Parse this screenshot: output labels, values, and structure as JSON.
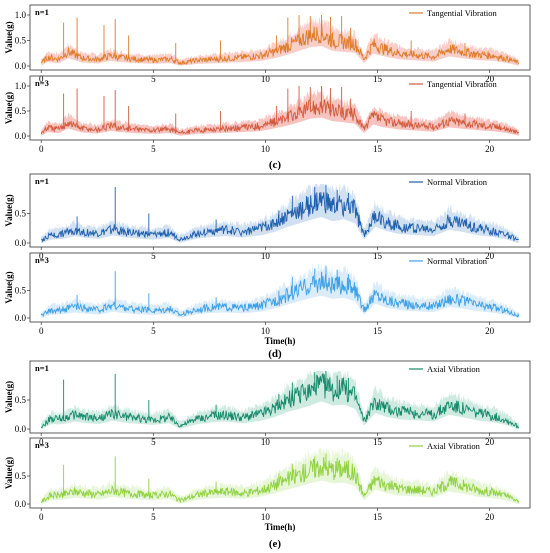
{
  "chart_data": [
    {
      "type": "line",
      "group": "c",
      "panel_label": "n=1",
      "legend": "Tangential Vibration",
      "color": "#e07b28",
      "band_color": "#f7c6c0",
      "ylabel": "Value(g)",
      "xlabel": "",
      "xlim": [
        -0.5,
        21.8
      ],
      "ylim": [
        0,
        1.0
      ],
      "xticks": [
        "0",
        "5",
        "10",
        "15",
        "20"
      ],
      "yticks": [
        "0.0",
        "0.5",
        "1.0"
      ],
      "x": [
        0,
        0.3,
        0.8,
        1.2,
        1.8,
        2.5,
        3.1,
        3.5,
        4.2,
        5.0,
        5.8,
        6.2,
        7.0,
        7.5,
        8.2,
        9.0,
        9.8,
        10.4,
        11.0,
        11.5,
        12.0,
        12.5,
        13.0,
        13.5,
        14.0,
        14.4,
        14.8,
        15.3,
        16.0,
        17.0,
        17.5,
        18.2,
        18.8,
        19.5,
        20.2,
        20.8,
        21.3
      ],
      "values": [
        0.05,
        0.15,
        0.12,
        0.25,
        0.14,
        0.11,
        0.18,
        0.15,
        0.12,
        0.1,
        0.12,
        0.05,
        0.1,
        0.11,
        0.13,
        0.15,
        0.18,
        0.25,
        0.35,
        0.45,
        0.55,
        0.58,
        0.45,
        0.42,
        0.4,
        0.12,
        0.38,
        0.3,
        0.22,
        0.18,
        0.16,
        0.3,
        0.25,
        0.2,
        0.18,
        0.12,
        0.05
      ],
      "spikes_x": [
        1.0,
        1.6,
        2.8,
        3.3,
        3.9,
        6.0,
        8.0,
        10.5,
        11.0,
        11.5,
        12.0,
        12.5,
        12.9,
        13.4,
        13.8,
        16.5,
        18.9
      ],
      "spikes_y": [
        0.85,
        0.95,
        0.8,
        0.92,
        0.6,
        0.45,
        0.5,
        0.6,
        0.95,
        1.0,
        0.98,
        1.0,
        0.96,
        0.98,
        0.75,
        0.5,
        0.45
      ]
    },
    {
      "type": "line",
      "group": "c",
      "panel_label": "n=3",
      "legend": "Tangential Vibration",
      "color": "#d45a3c",
      "band_color": "#f5b9b4",
      "ylabel": "Value(g)",
      "xlabel": "",
      "xlim": [
        -0.5,
        21.8
      ],
      "ylim": [
        0,
        1.0
      ],
      "xticks": [
        "0",
        "5",
        "10",
        "15",
        "20"
      ],
      "yticks": [
        "0.0",
        "0.5",
        "1.0"
      ],
      "x": [
        0,
        0.3,
        0.8,
        1.2,
        1.8,
        2.5,
        3.1,
        3.5,
        4.2,
        5.0,
        5.8,
        6.2,
        7.0,
        7.5,
        8.2,
        9.0,
        9.8,
        10.4,
        11.0,
        11.5,
        12.0,
        12.5,
        13.0,
        13.5,
        14.0,
        14.4,
        14.8,
        15.3,
        16.0,
        17.0,
        17.5,
        18.2,
        18.8,
        19.5,
        20.2,
        20.8,
        21.3
      ],
      "values": [
        0.05,
        0.15,
        0.12,
        0.25,
        0.14,
        0.11,
        0.18,
        0.15,
        0.12,
        0.1,
        0.12,
        0.05,
        0.1,
        0.11,
        0.13,
        0.15,
        0.18,
        0.25,
        0.33,
        0.42,
        0.52,
        0.55,
        0.45,
        0.42,
        0.38,
        0.12,
        0.36,
        0.28,
        0.22,
        0.18,
        0.16,
        0.28,
        0.24,
        0.2,
        0.17,
        0.12,
        0.05
      ],
      "spikes_x": [
        1.0,
        1.6,
        2.8,
        3.3,
        3.9,
        6.0,
        8.0,
        10.5,
        11.0,
        11.5,
        12.0,
        12.5,
        12.9,
        13.4,
        13.8,
        16.5,
        18.9
      ],
      "spikes_y": [
        0.85,
        0.95,
        0.8,
        0.92,
        0.6,
        0.45,
        0.5,
        0.6,
        0.95,
        1.0,
        0.98,
        1.0,
        0.96,
        0.98,
        0.75,
        0.5,
        0.45
      ]
    },
    {
      "type": "line",
      "group": "d",
      "panel_label": "n=1",
      "legend": "Normal Vibration",
      "color": "#1f5fae",
      "band_color": "#c9dcf0",
      "ylabel": "Value(g)",
      "xlabel": "",
      "xlim": [
        -0.5,
        21.8
      ],
      "ylim": [
        0,
        1.0
      ],
      "xticks": [
        "0",
        "5",
        "10",
        "15",
        "20"
      ],
      "yticks": [
        "0.0",
        "0.5"
      ],
      "x": [
        0,
        0.4,
        1.0,
        1.5,
        2.0,
        2.6,
        3.2,
        3.6,
        4.2,
        5.0,
        5.7,
        6.2,
        7.0,
        7.6,
        8.2,
        9.0,
        9.8,
        10.4,
        11.0,
        11.5,
        12.0,
        12.5,
        13.0,
        13.5,
        14.0,
        14.4,
        14.9,
        15.4,
        16.0,
        17.0,
        17.5,
        18.2,
        18.8,
        19.5,
        20.2,
        20.8,
        21.3
      ],
      "values": [
        0.03,
        0.12,
        0.14,
        0.2,
        0.16,
        0.14,
        0.22,
        0.18,
        0.15,
        0.12,
        0.16,
        0.05,
        0.15,
        0.18,
        0.2,
        0.17,
        0.22,
        0.3,
        0.42,
        0.5,
        0.58,
        0.65,
        0.55,
        0.6,
        0.5,
        0.12,
        0.42,
        0.32,
        0.25,
        0.22,
        0.2,
        0.35,
        0.3,
        0.22,
        0.18,
        0.12,
        0.03
      ],
      "spikes_x": [
        1.6,
        3.3,
        4.8,
        7.8,
        10.6,
        11.2,
        12.2,
        12.7,
        13.2,
        13.7
      ],
      "spikes_y": [
        0.45,
        0.95,
        0.5,
        0.4,
        0.55,
        0.8,
        0.95,
        0.98,
        0.9,
        0.85
      ]
    },
    {
      "type": "line",
      "group": "d",
      "panel_label": "n=3",
      "legend": "Normal Vibration",
      "color": "#3ea0e6",
      "band_color": "#d3e9f8",
      "ylabel": "Value(g)",
      "xlabel": "Time(h)",
      "xlim": [
        -0.5,
        21.8
      ],
      "ylim": [
        0,
        1.0
      ],
      "xticks": [
        "0",
        "5",
        "10",
        "15",
        "20"
      ],
      "yticks": [
        "0.0",
        "0.5"
      ],
      "x": [
        0,
        0.4,
        1.0,
        1.5,
        2.0,
        2.6,
        3.2,
        3.6,
        4.2,
        5.0,
        5.7,
        6.2,
        7.0,
        7.6,
        8.2,
        9.0,
        9.8,
        10.4,
        11.0,
        11.5,
        12.0,
        12.5,
        13.0,
        13.5,
        14.0,
        14.4,
        14.9,
        15.4,
        16.0,
        17.0,
        17.5,
        18.2,
        18.8,
        19.5,
        20.2,
        20.8,
        21.3
      ],
      "values": [
        0.03,
        0.12,
        0.14,
        0.18,
        0.15,
        0.13,
        0.2,
        0.17,
        0.14,
        0.12,
        0.15,
        0.05,
        0.14,
        0.17,
        0.18,
        0.16,
        0.2,
        0.28,
        0.38,
        0.46,
        0.54,
        0.6,
        0.52,
        0.55,
        0.46,
        0.12,
        0.4,
        0.3,
        0.24,
        0.2,
        0.19,
        0.32,
        0.28,
        0.21,
        0.17,
        0.11,
        0.03
      ],
      "spikes_x": [
        1.6,
        3.3,
        4.8,
        7.8,
        10.6,
        11.2,
        12.2,
        12.7,
        13.2,
        13.7
      ],
      "spikes_y": [
        0.42,
        0.85,
        0.45,
        0.38,
        0.5,
        0.75,
        0.9,
        0.95,
        0.88,
        0.8
      ]
    },
    {
      "type": "line",
      "group": "e",
      "panel_label": "n=1",
      "legend": "Axial Vibration",
      "color": "#168a6a",
      "band_color": "#c7e8dc",
      "ylabel": "Value(g)",
      "xlabel": "",
      "xlim": [
        -0.5,
        21.8
      ],
      "ylim": [
        0,
        1.0
      ],
      "xticks": [
        "0",
        "5",
        "10",
        "15",
        "20"
      ],
      "yticks": [
        "0.0",
        "0.5"
      ],
      "x": [
        0,
        0.4,
        1.0,
        1.5,
        2.0,
        2.6,
        3.2,
        3.6,
        4.2,
        5.0,
        5.7,
        6.2,
        7.0,
        7.6,
        8.2,
        9.0,
        9.8,
        10.4,
        11.0,
        11.5,
        12.0,
        12.5,
        13.0,
        13.5,
        14.0,
        14.4,
        14.9,
        15.4,
        16.0,
        17.0,
        17.5,
        18.2,
        18.8,
        19.5,
        20.2,
        20.8,
        21.3
      ],
      "values": [
        0.03,
        0.15,
        0.16,
        0.22,
        0.18,
        0.16,
        0.24,
        0.2,
        0.17,
        0.14,
        0.18,
        0.05,
        0.16,
        0.2,
        0.22,
        0.18,
        0.24,
        0.32,
        0.45,
        0.52,
        0.6,
        0.7,
        0.6,
        0.62,
        0.52,
        0.12,
        0.42,
        0.33,
        0.27,
        0.24,
        0.22,
        0.38,
        0.32,
        0.24,
        0.2,
        0.13,
        0.03
      ],
      "spikes_x": [
        1.0,
        3.3,
        4.8,
        7.8,
        10.6,
        11.2,
        12.2,
        12.7,
        13.2,
        13.7
      ],
      "spikes_y": [
        0.85,
        0.95,
        0.5,
        0.42,
        0.6,
        0.8,
        0.98,
        1.0,
        0.92,
        0.88
      ]
    },
    {
      "type": "line",
      "group": "e",
      "panel_label": "n=3",
      "legend": "Axial Vibration",
      "color": "#8fd13f",
      "band_color": "#e3f4cf",
      "ylabel": "Value(g)",
      "xlabel": "Time(h)",
      "xlim": [
        -0.5,
        21.8
      ],
      "ylim": [
        0,
        1.0
      ],
      "xticks": [
        "0",
        "5",
        "10",
        "15",
        "20"
      ],
      "yticks": [
        "0.0",
        "0.5"
      ],
      "x": [
        0,
        0.4,
        1.0,
        1.5,
        2.0,
        2.6,
        3.2,
        3.6,
        4.2,
        5.0,
        5.7,
        6.2,
        7.0,
        7.6,
        8.2,
        9.0,
        9.8,
        10.4,
        11.0,
        11.5,
        12.0,
        12.5,
        13.0,
        13.5,
        14.0,
        14.4,
        14.9,
        15.4,
        16.0,
        17.0,
        17.5,
        18.2,
        18.8,
        19.5,
        20.2,
        20.8,
        21.3
      ],
      "values": [
        0.03,
        0.13,
        0.15,
        0.2,
        0.17,
        0.15,
        0.22,
        0.18,
        0.16,
        0.13,
        0.17,
        0.05,
        0.15,
        0.18,
        0.2,
        0.17,
        0.22,
        0.3,
        0.4,
        0.47,
        0.55,
        0.62,
        0.55,
        0.57,
        0.48,
        0.12,
        0.4,
        0.31,
        0.25,
        0.22,
        0.2,
        0.35,
        0.3,
        0.22,
        0.18,
        0.12,
        0.03
      ],
      "spikes_x": [
        1.0,
        3.3,
        4.8,
        7.8,
        10.6,
        11.2,
        12.2,
        12.7,
        13.2,
        13.7
      ],
      "spikes_y": [
        0.7,
        0.85,
        0.45,
        0.4,
        0.55,
        0.72,
        0.85,
        0.9,
        0.82,
        0.78
      ]
    }
  ],
  "captions": [
    "(c)",
    "(d)",
    "(e)"
  ]
}
